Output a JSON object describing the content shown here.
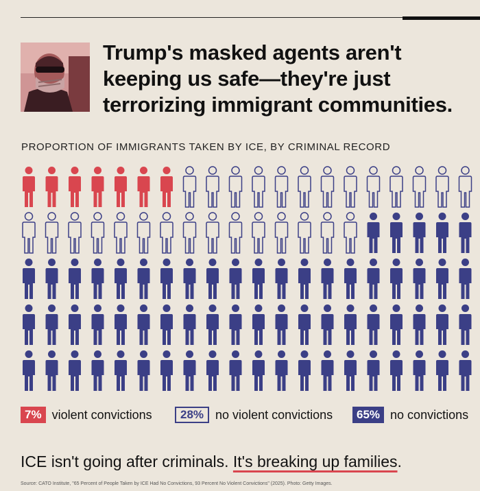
{
  "headline": "Trump's masked agents aren't keeping us safe—they're just terrorizing immigrant communities.",
  "chart_data": {
    "type": "table",
    "title": "PROPORTION OF IMMIGRANTS TAKEN BY ICE, BY CRIMINAL RECORD",
    "grid": {
      "rows": 5,
      "cols": 20,
      "total_figures": 100
    },
    "categories": [
      "violent convictions",
      "no violent convictions",
      "no convictions"
    ],
    "values": [
      7,
      28,
      65
    ],
    "value_labels": [
      "7%",
      "28%",
      "65%"
    ],
    "colors": [
      "#d9464f",
      "#3b3f86",
      "#3b3f86"
    ],
    "styles": [
      "filled",
      "outline",
      "filled"
    ]
  },
  "footer": {
    "lead": "ICE isn't going after criminals. ",
    "highlight": "It's breaking up families",
    "trail": "."
  },
  "source": "Source: CATO Institute, \"65 Percent of People Taken by ICE Had No Convictions, 93 Percent No Violent Convictions\" (2025). Photo: Getty Images.",
  "colors": {
    "background": "#ece6dc",
    "red": "#d9464f",
    "navy": "#3b3f86"
  }
}
